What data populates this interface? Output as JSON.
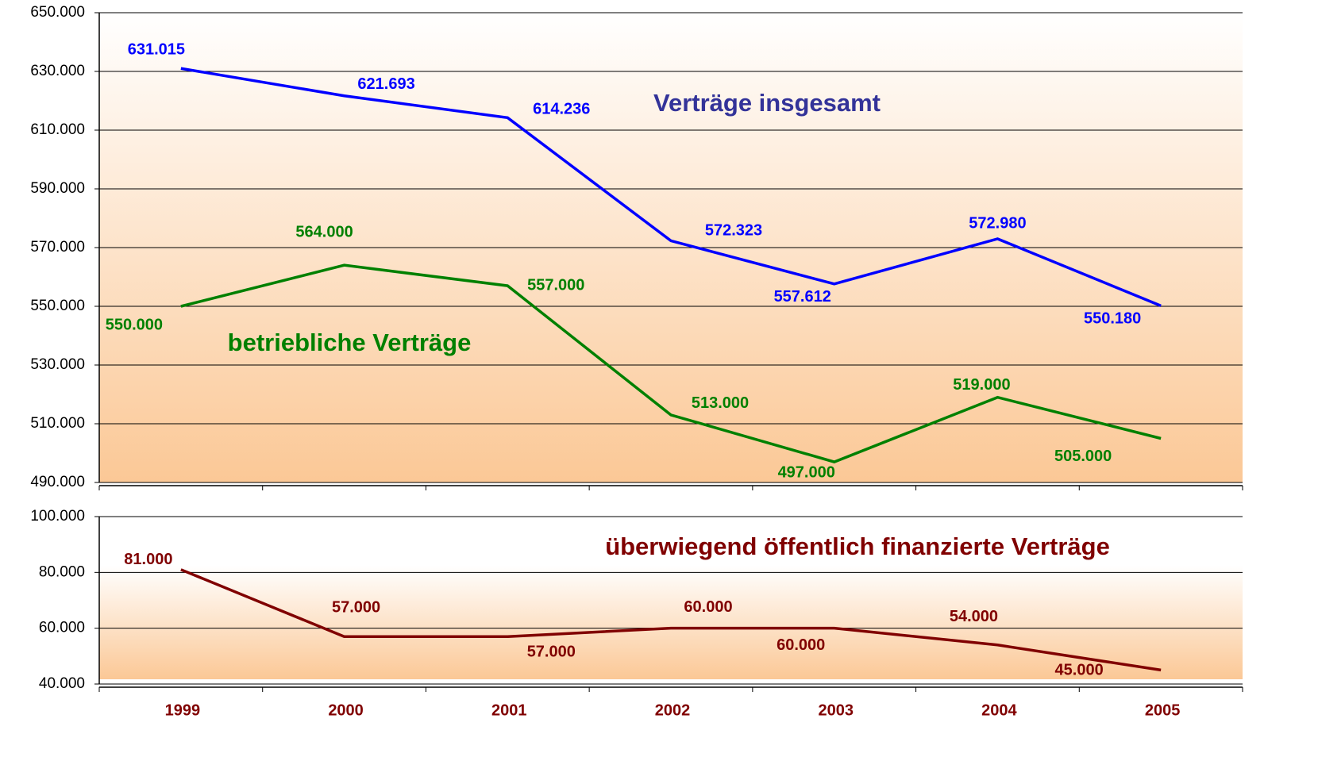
{
  "chart_data": [
    {
      "type": "line",
      "ylim": [
        490000,
        650000
      ],
      "yticks": [
        {
          "value": 490000,
          "label": "490.000"
        },
        {
          "value": 510000,
          "label": "510.000"
        },
        {
          "value": 530000,
          "label": "530.000"
        },
        {
          "value": 550000,
          "label": "550.000"
        },
        {
          "value": 570000,
          "label": "570.000"
        },
        {
          "value": 590000,
          "label": "590.000"
        },
        {
          "value": 610000,
          "label": "610.000"
        },
        {
          "value": 630000,
          "label": "630.000"
        },
        {
          "value": 650000,
          "label": "650.000"
        }
      ],
      "grid": true,
      "series": [
        {
          "name": "Verträge insgesamt",
          "color": "#0000ff",
          "values": [
            631015,
            621693,
            614236,
            572323,
            557612,
            572980,
            550180
          ],
          "value_labels": [
            "631.015",
            "621.693",
            "614.236",
            "572.323",
            "557.612",
            "572.980",
            "550.180"
          ]
        },
        {
          "name": "betriebliche Verträge",
          "color": "#008000",
          "values": [
            550000,
            564000,
            557000,
            513000,
            497000,
            519000,
            505000
          ],
          "value_labels": [
            "550.000",
            "564.000",
            "557.000",
            "513.000",
            "497.000",
            "519.000",
            "505.000"
          ]
        }
      ]
    },
    {
      "type": "line",
      "categories": [
        "1999",
        "2000",
        "2001",
        "2002",
        "2003",
        "2004",
        "2005"
      ],
      "ylim": [
        40000,
        100000
      ],
      "yticks": [
        {
          "value": 40000,
          "label": "40.000"
        },
        {
          "value": 60000,
          "label": "60.000"
        },
        {
          "value": 80000,
          "label": "80.000"
        },
        {
          "value": 100000,
          "label": "100.000"
        }
      ],
      "grid": true,
      "series": [
        {
          "name": "überwiegend öffentlich finanzierte Verträge",
          "color": "#800000",
          "values": [
            81000,
            57000,
            57000,
            60000,
            60000,
            54000,
            45000
          ],
          "value_labels": [
            "81.000",
            "57.000",
            "57.000",
            "60.000",
            "60.000",
            "54.000",
            "45.000"
          ]
        }
      ]
    }
  ]
}
